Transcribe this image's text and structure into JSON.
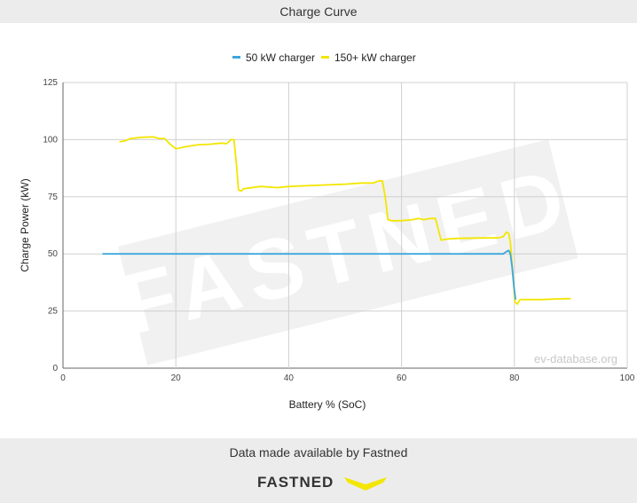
{
  "header": {
    "title": "Charge Curve"
  },
  "footer": {
    "note": "Data made available by Fastned",
    "brand_name": "FASTNED"
  },
  "watermark": {
    "logo_text": "FASTNED",
    "site": "ev-database.org"
  },
  "colors": {
    "series_50kw": "#3ba7dc",
    "series_150kw": "#f3e600",
    "brand_yellow": "#f3e600",
    "grid": "#cccccc"
  },
  "chart_data": {
    "type": "line",
    "title": "",
    "xlabel": "Battery % (SoC)",
    "ylabel": "Charge Power (kW)",
    "xlim": [
      0,
      100
    ],
    "ylim": [
      0,
      125
    ],
    "x_ticks": [
      0,
      20,
      40,
      60,
      80,
      100
    ],
    "y_ticks": [
      0,
      25,
      50,
      75,
      100,
      125
    ],
    "grid": true,
    "legend_position": "top",
    "series": [
      {
        "name": "50 kW charger",
        "color": "#3ba7dc",
        "points": [
          [
            7,
            50
          ],
          [
            30,
            50
          ],
          [
            50,
            50
          ],
          [
            70,
            50
          ],
          [
            78,
            50
          ],
          [
            78.6,
            51
          ],
          [
            79,
            51.5
          ],
          [
            79.3,
            50
          ],
          [
            79.6,
            44
          ],
          [
            79.9,
            36
          ],
          [
            80.2,
            30
          ]
        ]
      },
      {
        "name": "150+ kW charger",
        "color": "#f3e600",
        "points": [
          [
            10,
            99
          ],
          [
            11,
            99.5
          ],
          [
            12,
            100.5
          ],
          [
            14,
            101
          ],
          [
            16,
            101.2
          ],
          [
            17,
            100.5
          ],
          [
            18,
            100.5
          ],
          [
            19,
            98
          ],
          [
            20,
            96
          ],
          [
            21,
            96.5
          ],
          [
            22,
            97
          ],
          [
            24,
            97.8
          ],
          [
            26,
            98
          ],
          [
            28,
            98.5
          ],
          [
            29,
            98.2
          ],
          [
            29.8,
            100
          ],
          [
            30.3,
            100
          ],
          [
            30.7,
            90
          ],
          [
            31.1,
            78
          ],
          [
            31.6,
            77.5
          ],
          [
            32,
            78.5
          ],
          [
            35,
            79.5
          ],
          [
            38,
            79
          ],
          [
            40,
            79.5
          ],
          [
            45,
            80
          ],
          [
            50,
            80.5
          ],
          [
            53,
            81
          ],
          [
            55,
            81
          ],
          [
            56,
            82
          ],
          [
            56.6,
            82
          ],
          [
            57.1,
            75
          ],
          [
            57.6,
            65
          ],
          [
            58.2,
            64.5
          ],
          [
            60,
            64.5
          ],
          [
            62,
            65
          ],
          [
            63,
            65.5
          ],
          [
            64,
            65
          ],
          [
            65,
            65.5
          ],
          [
            66,
            65.5
          ],
          [
            66.5,
            61
          ],
          [
            67,
            56
          ],
          [
            68,
            56.5
          ],
          [
            70,
            56.8
          ],
          [
            75,
            57
          ],
          [
            77,
            57
          ],
          [
            78,
            57.5
          ],
          [
            78.6,
            59.5
          ],
          [
            79,
            59
          ],
          [
            79.3,
            55
          ],
          [
            79.7,
            42
          ],
          [
            80.1,
            29
          ],
          [
            80.5,
            28
          ],
          [
            81,
            30
          ],
          [
            82,
            30
          ],
          [
            85,
            30
          ],
          [
            88,
            30.3
          ],
          [
            90,
            30.4
          ]
        ]
      }
    ]
  }
}
